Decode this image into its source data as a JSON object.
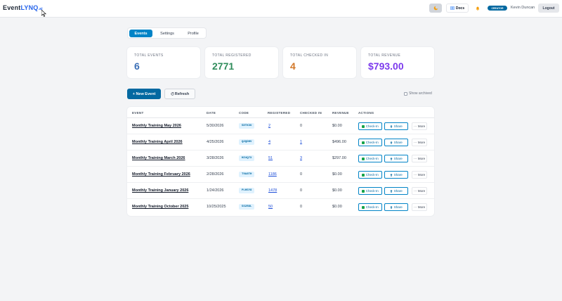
{
  "brand": {
    "name_part1": "Event",
    "name_part2": "LYNQ",
    "suffix": ".ai"
  },
  "header": {
    "docs_label": "Docs",
    "plan_badge": "CREATOR",
    "user_name": "Kevin Duncan",
    "logout_label": "Logout"
  },
  "tabs": [
    {
      "label": "Events",
      "active": true
    },
    {
      "label": "Settings",
      "active": false
    },
    {
      "label": "Profile",
      "active": false
    }
  ],
  "stats": [
    {
      "label": "TOTAL EVENTS",
      "value": "6",
      "color": "#3b6fb6"
    },
    {
      "label": "TOTAL REGISTERED",
      "value": "2771",
      "color": "#2f8c5b"
    },
    {
      "label": "TOTAL CHECKED IN",
      "value": "4",
      "color": "#d2782a"
    },
    {
      "label": "TOTAL REVENUE",
      "value": "$793.00",
      "color": "#7c3aed"
    }
  ],
  "toolbar": {
    "new_event_label": "+ New Event",
    "refresh_label": "Refresh",
    "show_archived_label": "Show archived"
  },
  "table": {
    "columns": [
      "EVENT",
      "DATE",
      "CODE",
      "REGISTERED",
      "CHECKED IN",
      "REVENUE",
      "ACTIONS"
    ],
    "rows": [
      {
        "name": "Monthly Training May 2026",
        "date": "5/30/2026",
        "code": "5DTK3U",
        "registered": "2",
        "checked_in": "0",
        "revenue": "$0.00"
      },
      {
        "name": "Monthly Training April 2026",
        "date": "4/25/2026",
        "code": "Q2QDHV",
        "registered": "4",
        "checked_in": "1",
        "revenue": "$496.00"
      },
      {
        "name": "Monthly Training March 2026",
        "date": "3/28/2026",
        "code": "HZ4Q7X",
        "registered": "51",
        "checked_in": "3",
        "revenue": "$297.00"
      },
      {
        "name": "Monthly Training February 2026",
        "date": "2/28/2026",
        "code": "T9A8TH",
        "registered": "1186",
        "checked_in": "0",
        "revenue": "$0.00"
      },
      {
        "name": "Monthly Training January 2026",
        "date": "1/24/2026",
        "code": "PLH5Y8",
        "registered": "1478",
        "checked_in": "0",
        "revenue": "$0.00"
      },
      {
        "name": "Monthly Training October 2025",
        "date": "10/25/2025",
        "code": "5S2R8L",
        "registered": "50",
        "checked_in": "0",
        "revenue": "$0.00"
      }
    ],
    "actions": {
      "checkin": "Check-In",
      "share": "Share",
      "more": "More"
    }
  }
}
